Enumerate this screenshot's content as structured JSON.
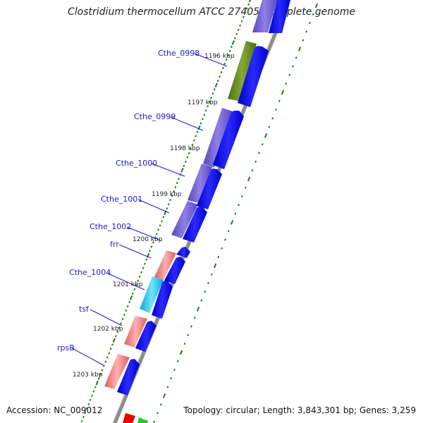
{
  "title": "Clostridium thermocellum ATCC 27405, complete genome",
  "accession": "Accession: NC_009012",
  "topology": "Topology: circular; Length: 3,843,301 bp; Genes: 3,259",
  "colors": {
    "backbone": "#8c8c8c",
    "forward_gene": "#1010e6",
    "purple_feature": "#7b68d8",
    "olive_feature": "#6b8e23",
    "salmon_feature": "#f08080",
    "cyan_feature": "#1ec8ee",
    "red_feature": "#e60000",
    "green_feature": "#22cc22",
    "tick": "#1a7a1a",
    "label": "#1a1acc"
  },
  "kbp_ticks": [
    "1196 kbp",
    "1197 kbp",
    "1198 kbp",
    "1199 kbp",
    "1200 kbp",
    "1201 kbp",
    "1202 kbp",
    "1203 kbp"
  ],
  "gene_labels": [
    "Cthe_0998",
    "Cthe_0999",
    "Cthe_1000",
    "Cthe_1001",
    "Cthe_1002",
    "frr",
    "Cthe_1004",
    "tsf",
    "rpsB"
  ]
}
